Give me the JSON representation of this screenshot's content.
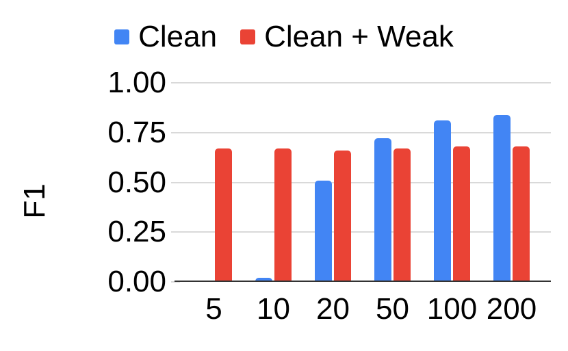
{
  "chart_data": {
    "type": "bar",
    "title": "",
    "ylabel": "F1",
    "xlabel": "",
    "categories": [
      "5",
      "10",
      "20",
      "50",
      "100",
      "200"
    ],
    "series": [
      {
        "name": "Clean",
        "color": "#4285F4",
        "values": [
          0,
          0.02,
          0.51,
          0.72,
          0.81,
          0.84
        ]
      },
      {
        "name": "Clean + Weak",
        "color": "#EA4335",
        "values": [
          0.67,
          0.67,
          0.66,
          0.67,
          0.68,
          0.68
        ]
      }
    ],
    "ylim": [
      0,
      1
    ],
    "yticks": [
      0,
      0.25,
      0.5,
      0.75,
      1
    ],
    "ytick_labels": [
      "0.00",
      "0.25",
      "0.50",
      "0.75",
      "1.00"
    ],
    "grid": true,
    "legend_position": "top"
  }
}
